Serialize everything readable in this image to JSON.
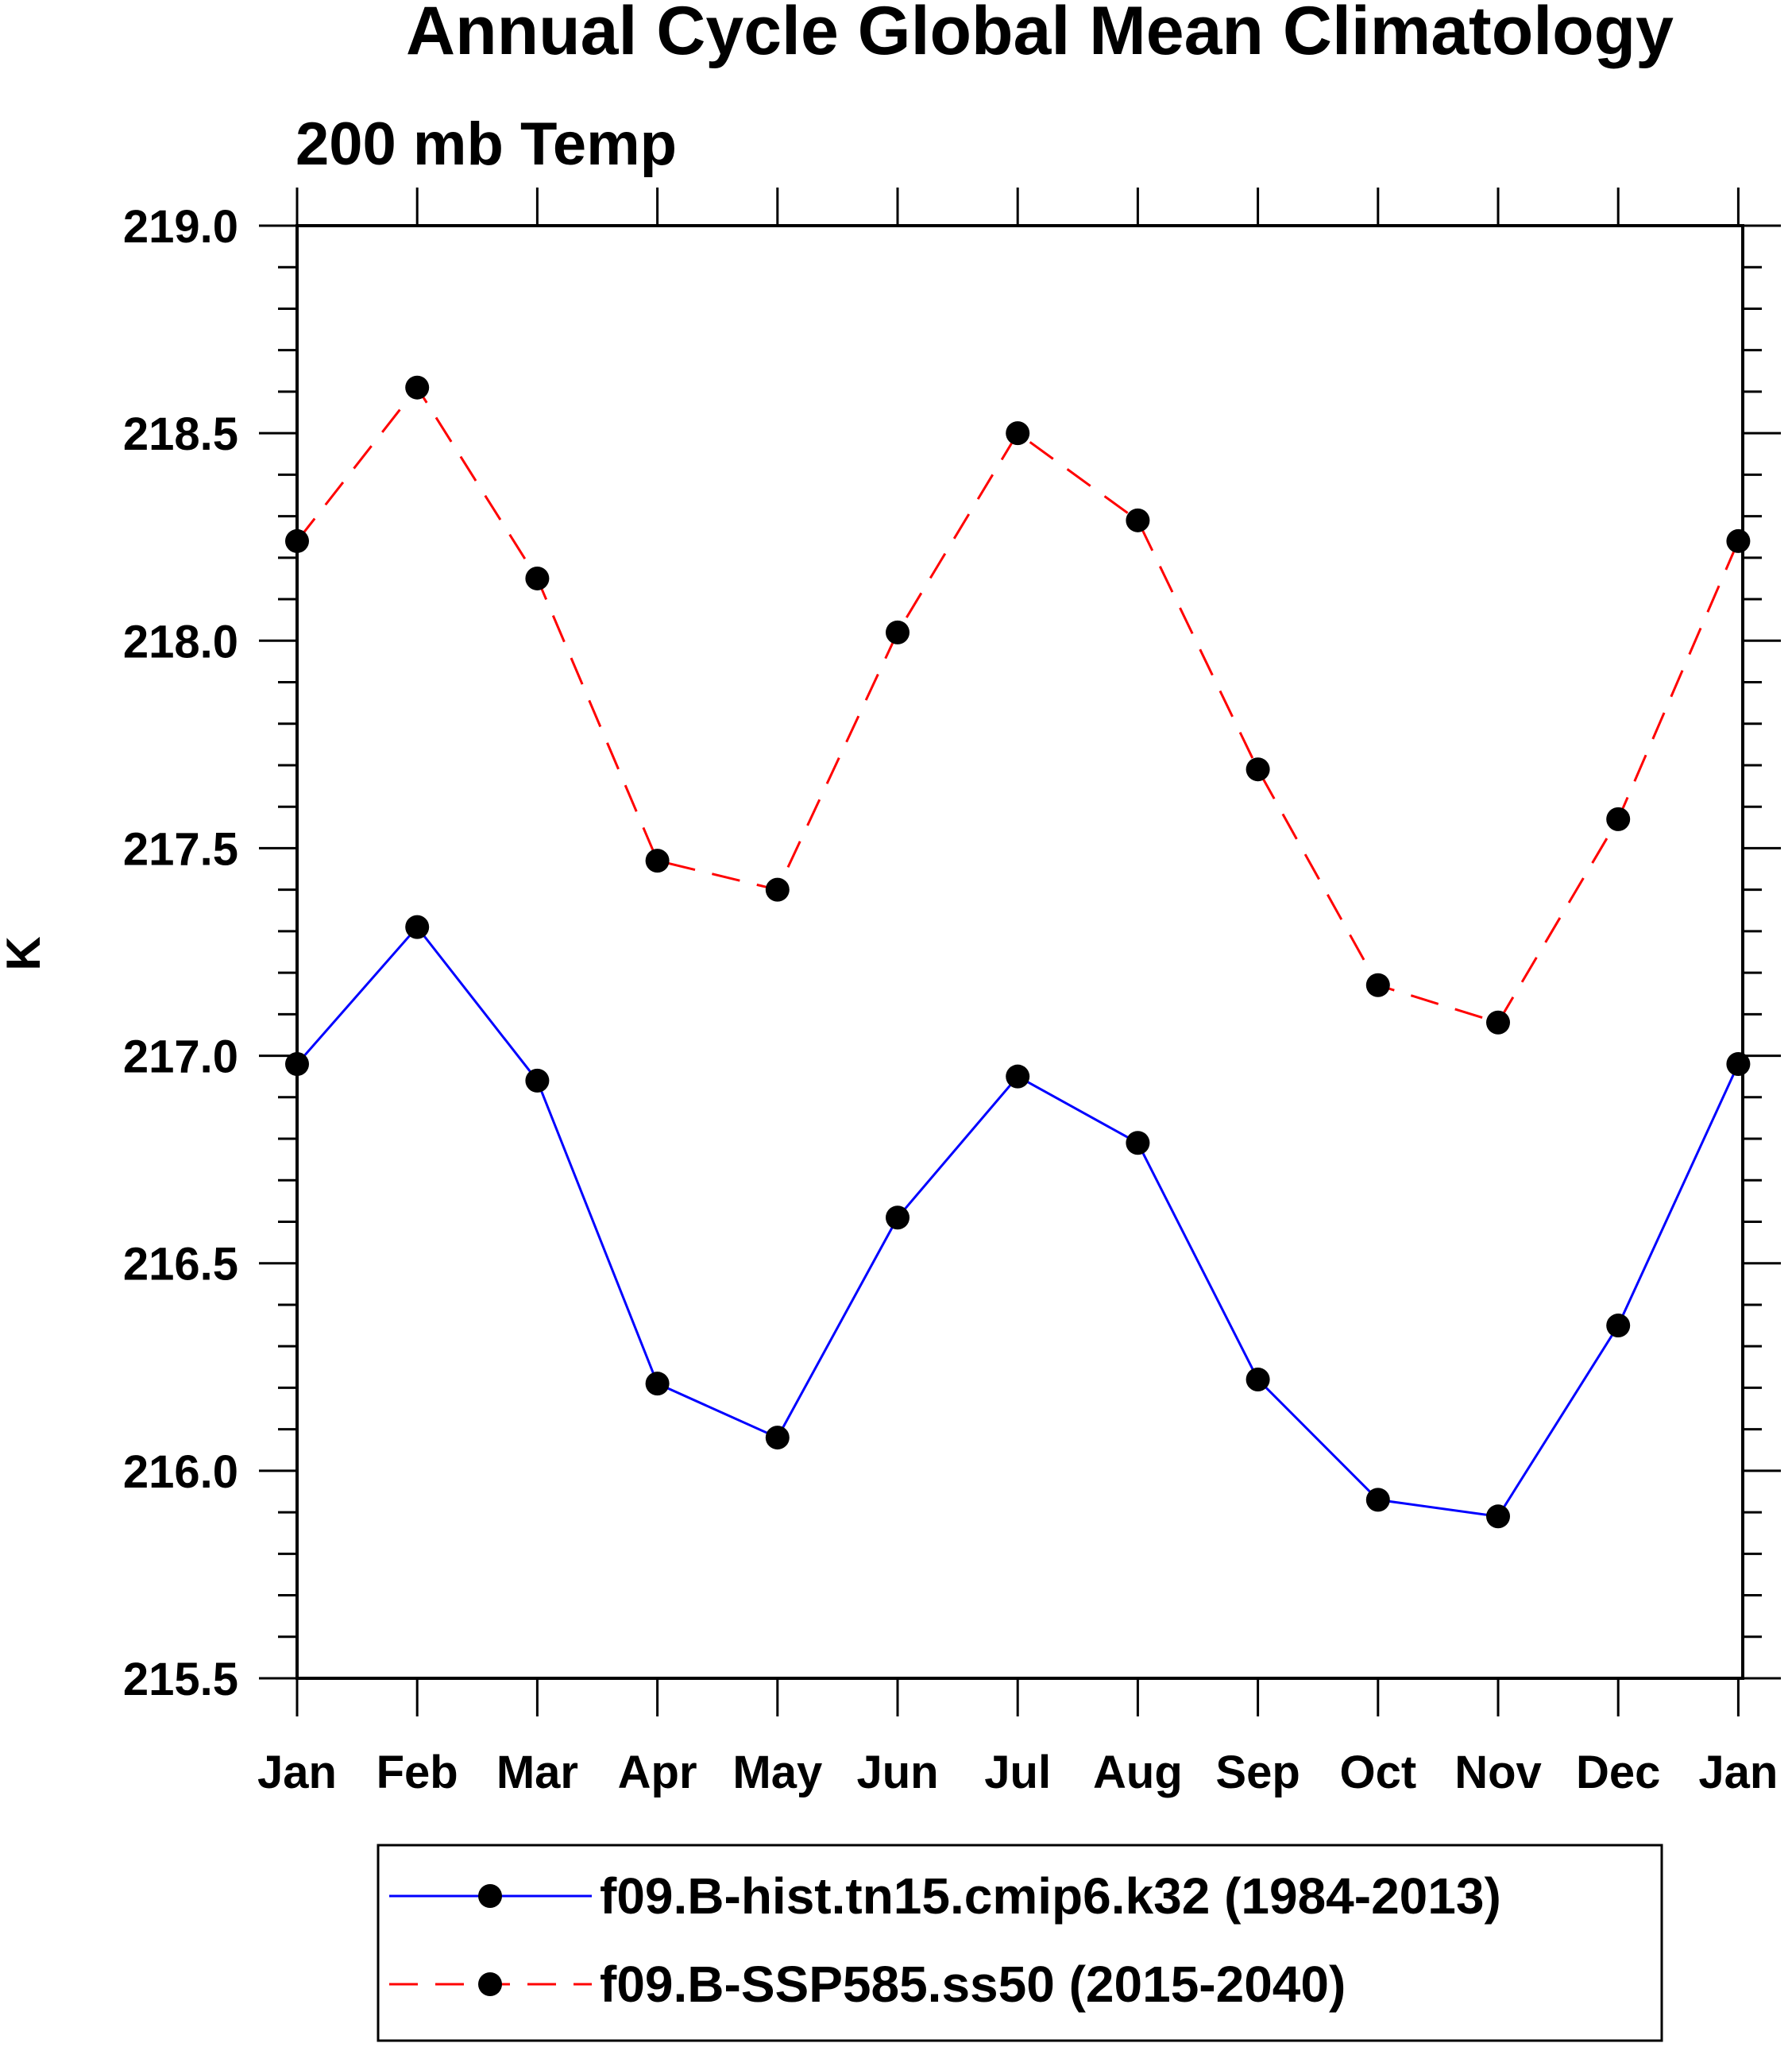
{
  "chart_data": {
    "type": "line",
    "title": "Annual Cycle Global Mean Climatology",
    "subtitle": "200 mb Temp",
    "ylabel": "K",
    "xlabel": "",
    "categories": [
      "Jan",
      "Feb",
      "Mar",
      "Apr",
      "May",
      "Jun",
      "Jul",
      "Aug",
      "Sep",
      "Oct",
      "Nov",
      "Dec",
      "Jan"
    ],
    "ylim": [
      215.5,
      219.0
    ],
    "yticks": [
      "215.5",
      "216.0",
      "216.5",
      "217.0",
      "217.5",
      "218.0",
      "218.5",
      "219.0"
    ],
    "series": [
      {
        "name": "f09.B-hist.tn15.cmip6.k32 (1984-2013)",
        "color": "#0000ff",
        "dash": "solid",
        "marker": "filled-circle",
        "values": [
          216.98,
          217.31,
          216.94,
          216.21,
          216.08,
          216.61,
          216.95,
          216.79,
          216.22,
          215.93,
          215.89,
          216.35,
          216.98
        ]
      },
      {
        "name": "f09.B-SSP585.ss50 (2015-2040)",
        "color": "#ff0000",
        "dash": "dashed",
        "marker": "filled-circle",
        "values": [
          218.24,
          218.61,
          218.15,
          217.47,
          217.4,
          218.02,
          218.5,
          218.29,
          217.69,
          217.17,
          217.08,
          217.57,
          218.24
        ]
      }
    ],
    "grid": false,
    "legend_position": "bottom"
  }
}
